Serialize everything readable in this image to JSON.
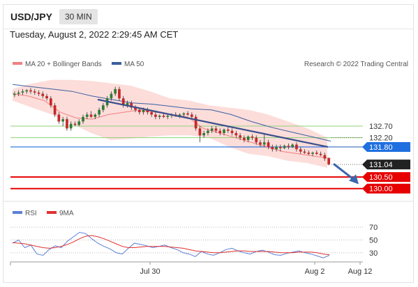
{
  "header": {
    "pair": "USD/JPY",
    "timeframe": "30 MIN",
    "datetime": "Tuesday, August 2, 2022 2:29:45 AM CET"
  },
  "legend": {
    "ma_bb": "MA 20 + Bollinger Bands",
    "ma50": "MA 50",
    "credit": "Research © 2022 Trading Central"
  },
  "rsi_legend": {
    "rsi": "RSI",
    "ma9": "9MA"
  },
  "colors": {
    "bollinger_fill": "#fbd7d3",
    "ma20": "#f08080",
    "ma50": "#3b5fa0",
    "resistance": "#8fd17a",
    "support": "#e60000",
    "pivot": "#1f6fe0",
    "price_tag": "#222222",
    "arrow": "#3a66b0",
    "rsi": "#5b7fd6",
    "ma9": "#e03030",
    "bull": "#2e7d32",
    "bear": "#c62828"
  },
  "chart_data": [
    {
      "type": "candlestick",
      "y_range": [
        129.6,
        134.9
      ],
      "price_levels": [
        {
          "label": "132.70",
          "value": 132.7,
          "kind": "resistance"
        },
        {
          "label": "132.20",
          "value": 132.2,
          "kind": "resistance"
        },
        {
          "label": "131.80",
          "value": 131.8,
          "kind": "pivot"
        },
        {
          "label": "131.04",
          "value": 131.04,
          "kind": "last"
        },
        {
          "label": "130.50",
          "value": 130.5,
          "kind": "support"
        },
        {
          "label": "130.00",
          "value": 130.0,
          "kind": "support"
        }
      ],
      "x_labels": [
        "Jul 30",
        "Aug 2",
        "Aug 12"
      ],
      "candles": [
        [
          134.05,
          134.2,
          133.95,
          134.1
        ],
        [
          134.1,
          134.25,
          134.0,
          134.15
        ],
        [
          134.15,
          134.3,
          134.05,
          134.2
        ],
        [
          134.2,
          134.3,
          134.1,
          134.25
        ],
        [
          134.25,
          134.35,
          134.1,
          134.2
        ],
        [
          134.2,
          134.3,
          134.05,
          134.15
        ],
        [
          134.15,
          134.25,
          134.0,
          134.1
        ],
        [
          134.1,
          134.2,
          133.9,
          134.0
        ],
        [
          134.0,
          134.1,
          133.8,
          133.9
        ],
        [
          133.9,
          134.0,
          133.5,
          133.6
        ],
        [
          133.6,
          133.7,
          133.1,
          133.2
        ],
        [
          133.2,
          133.3,
          132.8,
          132.9
        ],
        [
          132.9,
          133.1,
          132.7,
          133.0
        ],
        [
          133.0,
          133.1,
          132.5,
          132.6
        ],
        [
          132.6,
          132.9,
          132.5,
          132.8
        ],
        [
          132.8,
          132.9,
          132.7,
          132.75
        ],
        [
          132.75,
          133.0,
          132.7,
          132.9
        ],
        [
          132.9,
          133.2,
          132.8,
          133.1
        ],
        [
          133.1,
          133.3,
          133.0,
          133.2
        ],
        [
          133.2,
          133.35,
          133.05,
          133.1
        ],
        [
          133.1,
          133.25,
          133.0,
          133.2
        ],
        [
          133.2,
          133.5,
          133.1,
          133.4
        ],
        [
          133.4,
          133.7,
          133.3,
          133.6
        ],
        [
          133.6,
          134.0,
          133.5,
          133.9
        ],
        [
          133.9,
          134.2,
          133.8,
          134.1
        ],
        [
          134.1,
          134.4,
          134.0,
          134.3
        ],
        [
          134.3,
          134.4,
          133.8,
          133.9
        ],
        [
          133.9,
          134.0,
          133.5,
          133.6
        ],
        [
          133.6,
          133.8,
          133.5,
          133.7
        ],
        [
          133.7,
          133.8,
          133.4,
          133.5
        ],
        [
          133.5,
          133.6,
          133.3,
          133.4
        ],
        [
          133.4,
          133.5,
          133.2,
          133.3
        ],
        [
          133.3,
          133.5,
          133.2,
          133.4
        ],
        [
          133.4,
          133.5,
          133.2,
          133.3
        ],
        [
          133.3,
          133.4,
          133.1,
          133.2
        ],
        [
          133.2,
          133.3,
          133.0,
          133.1
        ],
        [
          133.1,
          133.2,
          133.0,
          133.15
        ],
        [
          133.15,
          133.25,
          133.05,
          133.1
        ],
        [
          133.1,
          133.2,
          133.0,
          133.15
        ],
        [
          133.15,
          133.25,
          133.05,
          133.2
        ],
        [
          133.2,
          133.3,
          133.1,
          133.15
        ],
        [
          133.15,
          133.25,
          133.05,
          133.2
        ],
        [
          133.2,
          133.3,
          133.1,
          133.25
        ],
        [
          133.25,
          133.35,
          133.15,
          133.2
        ],
        [
          133.2,
          133.3,
          133.0,
          133.1
        ],
        [
          133.1,
          133.2,
          132.5,
          132.6
        ],
        [
          132.6,
          132.7,
          132.0,
          132.3
        ],
        [
          132.3,
          132.5,
          132.2,
          132.4
        ],
        [
          132.4,
          132.6,
          132.3,
          132.5
        ],
        [
          132.5,
          132.7,
          132.4,
          132.6
        ],
        [
          132.6,
          132.7,
          132.4,
          132.5
        ],
        [
          132.5,
          132.6,
          132.3,
          132.4
        ],
        [
          132.4,
          132.6,
          132.3,
          132.55
        ],
        [
          132.55,
          132.65,
          132.4,
          132.5
        ],
        [
          132.5,
          132.6,
          132.3,
          132.4
        ],
        [
          132.4,
          132.5,
          132.2,
          132.3
        ],
        [
          132.3,
          132.4,
          132.1,
          132.2
        ],
        [
          132.2,
          132.3,
          132.0,
          132.1
        ],
        [
          132.1,
          132.3,
          132.0,
          132.25
        ],
        [
          132.25,
          132.35,
          132.1,
          132.2
        ],
        [
          132.2,
          132.3,
          131.9,
          132.0
        ],
        [
          132.0,
          132.1,
          131.8,
          131.9
        ],
        [
          131.9,
          132.4,
          131.8,
          132.0
        ],
        [
          132.0,
          132.1,
          131.7,
          131.8
        ],
        [
          131.8,
          131.9,
          131.6,
          131.7
        ],
        [
          131.7,
          131.9,
          131.6,
          131.8
        ],
        [
          131.8,
          131.9,
          131.6,
          131.75
        ],
        [
          131.75,
          131.9,
          131.7,
          131.85
        ],
        [
          131.85,
          131.95,
          131.7,
          131.8
        ],
        [
          131.8,
          131.95,
          131.75,
          131.9
        ],
        [
          131.9,
          132.0,
          131.6,
          131.7
        ],
        [
          131.7,
          131.8,
          131.5,
          131.6
        ],
        [
          131.6,
          131.7,
          131.5,
          131.55
        ],
        [
          131.55,
          131.65,
          131.45,
          131.5
        ],
        [
          131.5,
          131.6,
          131.4,
          131.55
        ],
        [
          131.55,
          131.65,
          131.45,
          131.5
        ],
        [
          131.5,
          131.6,
          131.4,
          131.45
        ],
        [
          131.45,
          131.55,
          131.2,
          131.3
        ],
        [
          131.3,
          131.35,
          131.0,
          131.04
        ]
      ],
      "bollinger": {
        "upper": [
          134.3,
          134.55,
          134.7,
          134.7,
          134.65,
          134.55,
          134.45,
          134.2,
          133.9,
          133.8,
          133.6,
          133.5,
          133.4,
          133.2,
          132.9,
          132.6,
          132.2
        ],
        "lower": [
          133.8,
          133.5,
          133.2,
          132.8,
          132.4,
          132.1,
          132.15,
          132.25,
          132.3,
          132.3,
          132.2,
          131.8,
          131.5,
          131.4,
          131.2,
          131.1,
          130.9
        ]
      },
      "ma20": [
        134.1,
        134.0,
        133.8,
        133.3,
        133.05,
        133.0,
        133.2,
        133.3,
        133.4,
        133.3,
        133.2,
        133.1,
        132.6,
        132.4,
        132.2,
        132.0,
        131.8,
        131.6,
        131.5,
        131.4,
        131.3
      ],
      "ma50": [
        134.5,
        134.4,
        134.3,
        134.2,
        134.0,
        133.85,
        133.7,
        133.65,
        133.55,
        133.45,
        133.4,
        133.2,
        132.9,
        132.65,
        132.45,
        132.25,
        132.05
      ],
      "trendline": {
        "from": [
          133.85
        ],
        "to": [
          131.8
        ]
      }
    },
    {
      "type": "line",
      "title": "RSI",
      "y_range": [
        20,
        80
      ],
      "y_ticks": [
        70,
        50,
        30
      ],
      "series": [
        {
          "name": "RSI",
          "values": [
            45,
            50,
            38,
            42,
            28,
            26,
            35,
            41,
            38,
            48,
            55,
            62,
            60,
            52,
            45,
            40,
            36,
            30,
            28,
            37,
            45,
            43,
            41,
            38,
            40,
            42,
            38,
            35,
            30,
            28,
            24,
            32,
            28,
            26,
            30,
            35,
            37,
            33,
            30,
            28,
            32,
            34,
            31,
            27,
            26,
            29,
            31,
            33,
            30,
            28,
            25,
            22,
            26
          ]
        },
        {
          "name": "9MA",
          "values": [
            46,
            45,
            44,
            42,
            40,
            38,
            37,
            38,
            40,
            43,
            47,
            52,
            56,
            57,
            55,
            52,
            48,
            44,
            40,
            38,
            38,
            39,
            40,
            40,
            40,
            40,
            39,
            38,
            37,
            35,
            33,
            32,
            31,
            30,
            30,
            31,
            32,
            33,
            33,
            32,
            32,
            32,
            32,
            31,
            30,
            30,
            30,
            31,
            31,
            31,
            30,
            28,
            27
          ]
        }
      ]
    }
  ]
}
